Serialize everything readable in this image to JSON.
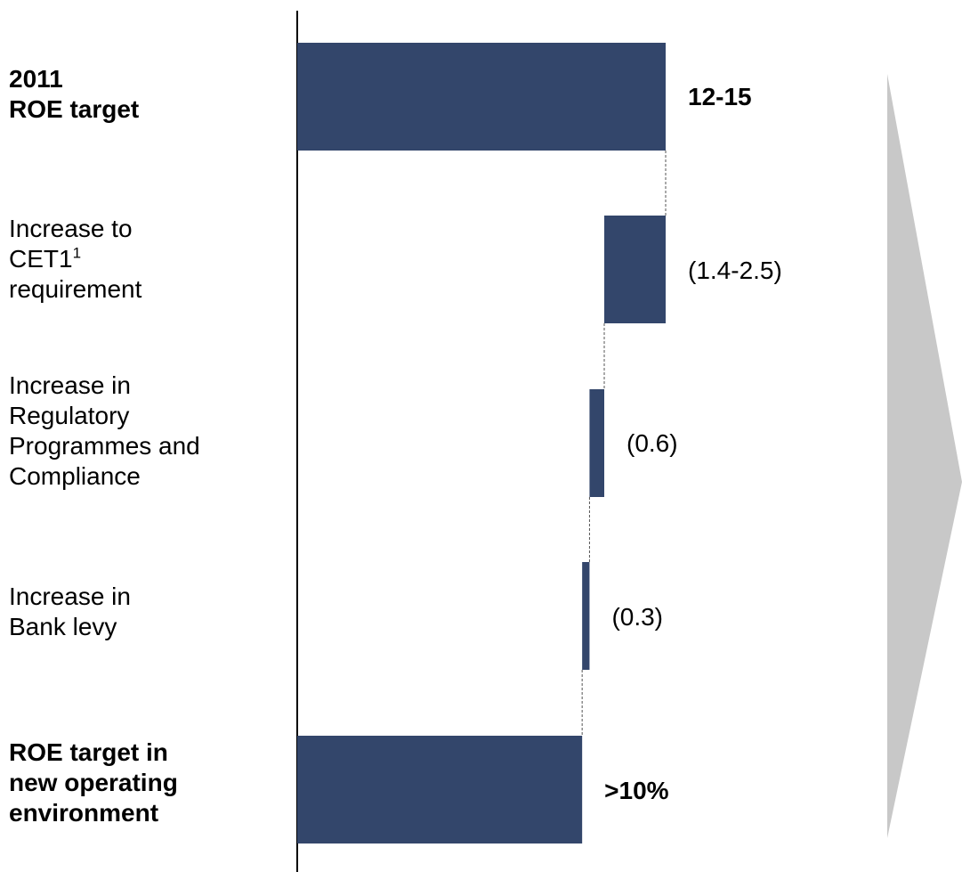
{
  "chart_data": {
    "type": "bar",
    "subtype": "waterfall",
    "orientation": "horizontal",
    "categories": [
      [
        "2011",
        "ROE target"
      ],
      [
        "Increase to",
        "CET1",
        "requirement"
      ],
      [
        "Increase in",
        "Regulatory",
        "Programmes and",
        "Compliance"
      ],
      [
        "Increase in",
        "Bank levy"
      ],
      [
        "ROE target in",
        "new operating",
        "environment"
      ]
    ],
    "superscripts": {
      "1.1": "1"
    },
    "bold_categories": [
      0,
      4
    ],
    "bars": [
      {
        "kind": "total",
        "start": 0,
        "end": 15,
        "label": "12-15",
        "bold": true
      },
      {
        "kind": "decrease",
        "start": 15,
        "end": 12.5,
        "label": "(1.4-2.5)",
        "bold": false
      },
      {
        "kind": "decrease",
        "start": 12.5,
        "end": 11.9,
        "label": "(0.6)",
        "bold": false
      },
      {
        "kind": "decrease",
        "start": 11.9,
        "end": 11.6,
        "label": "(0.3)",
        "bold": false
      },
      {
        "kind": "total",
        "start": 0,
        "end": 11.6,
        "label": ">10%",
        "bold": true
      }
    ],
    "xlim": [
      0,
      15
    ],
    "grid": false,
    "connectors": "dashed",
    "colors": {
      "bar": "#33466b",
      "arrow": "#c8c8c8",
      "axis": "#000000",
      "connector": "#555555"
    }
  }
}
